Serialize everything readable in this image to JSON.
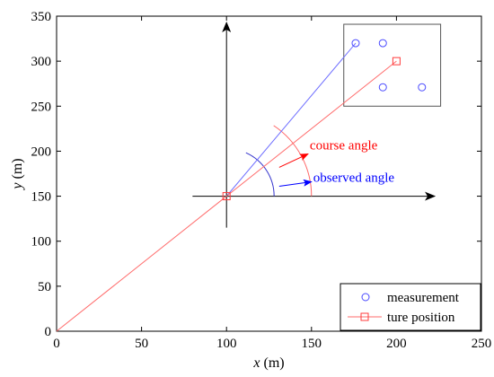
{
  "chart_data": {
    "type": "scatter",
    "xlabel": {
      "var": "x",
      "unit": "(m)"
    },
    "ylabel": {
      "var": "y",
      "unit": "(m)"
    },
    "xlim": [
      0,
      250
    ],
    "ylim": [
      0,
      350
    ],
    "xticks": [
      0,
      50,
      100,
      150,
      200,
      250
    ],
    "yticks": [
      0,
      50,
      100,
      150,
      200,
      250,
      300,
      350
    ],
    "grid": false,
    "legend_position": "bottom-right",
    "series": [
      {
        "name": "measurement",
        "marker": "circle",
        "color": "#4a4aff",
        "points": [
          [
            176,
            320
          ],
          [
            192,
            320
          ],
          [
            192,
            271
          ],
          [
            215,
            271
          ]
        ]
      },
      {
        "name": "ture position",
        "marker": "square",
        "color": "#ff3b3b",
        "points": [
          [
            0,
            0
          ],
          [
            100,
            150
          ],
          [
            200,
            300
          ]
        ]
      }
    ],
    "bearing_lines": [
      {
        "from": [
          100,
          150
        ],
        "to": [
          176,
          320
        ],
        "color": "#6f6fff"
      }
    ],
    "axes_cross": {
      "center": [
        100,
        150
      ],
      "x_from": 80,
      "x_to": 222,
      "y_from": 115,
      "y_to": 342,
      "color": "#000000"
    },
    "measurement_box": {
      "x0": 169,
      "x1": 226,
      "y0": 250,
      "y1": 341
    },
    "annotations": [
      {
        "text": "course angle",
        "color": "#ff0000",
        "at": [
          149,
          202
        ],
        "arrow_from": [
          131,
          182
        ],
        "arrow_to": [
          148,
          197
        ]
      },
      {
        "text": "observed angle",
        "color": "#0000ff",
        "at": [
          151,
          166
        ],
        "arrow_from": [
          131,
          161
        ],
        "arrow_to": [
          150,
          166
        ]
      }
    ],
    "arcs": [
      {
        "type": "course",
        "radius": 50,
        "start_deg": 0,
        "end_deg": 56.3,
        "color": "#ff6666"
      },
      {
        "type": "observed",
        "radius": 28,
        "start_deg": 0,
        "end_deg": 65.9,
        "color": "#3333cc"
      }
    ]
  }
}
